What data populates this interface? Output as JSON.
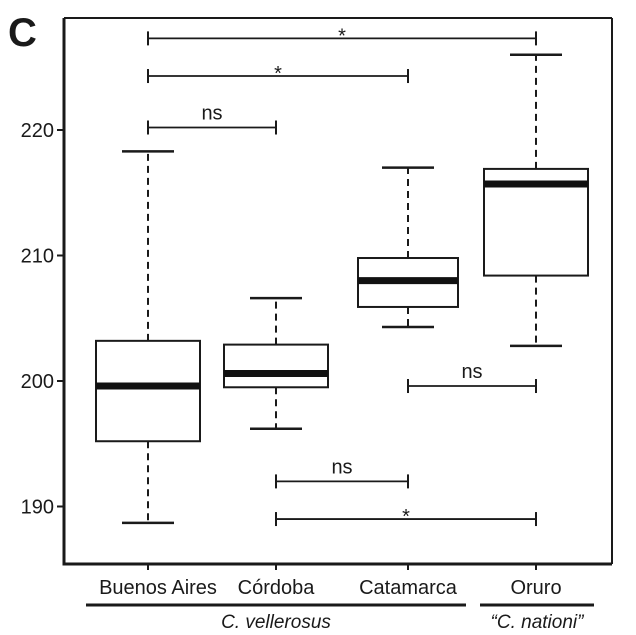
{
  "panel_label": "C",
  "chart_data": {
    "type": "box",
    "ylim": [
      186,
      235
    ],
    "y_ticks": [
      190,
      200,
      210,
      220
    ],
    "categories": [
      "Buenos Aires",
      "Córdoba",
      "Catamarca",
      "Oruro"
    ],
    "boxes": [
      {
        "category": "Buenos Aires",
        "whisker_low": 188.7,
        "q1": 195.2,
        "median": 199.6,
        "q3": 203.2,
        "whisker_high": 218.3
      },
      {
        "category": "Córdoba",
        "whisker_low": 196.2,
        "q1": 199.5,
        "median": 200.6,
        "q3": 202.9,
        "whisker_high": 206.6
      },
      {
        "category": "Catamarca",
        "whisker_low": 204.3,
        "q1": 205.9,
        "median": 208.0,
        "q3": 209.8,
        "whisker_high": 217.0
      },
      {
        "category": "Oruro",
        "whisker_low": 202.8,
        "q1": 208.4,
        "median": 215.7,
        "q3": 216.9,
        "whisker_high": 226.0
      }
    ],
    "comparisons": [
      {
        "from": "Buenos Aires",
        "to": "Oruro",
        "y": 227.3,
        "label": "*"
      },
      {
        "from": "Buenos Aires",
        "to": "Catamarca",
        "y": 224.3,
        "label": "*"
      },
      {
        "from": "Buenos Aires",
        "to": "Córdoba",
        "y": 220.2,
        "label": "ns"
      },
      {
        "from": "Catamarca",
        "to": "Oruro",
        "y": 199.6,
        "label": "ns"
      },
      {
        "from": "Córdoba",
        "to": "Catamarca",
        "y": 192.0,
        "label": "ns"
      },
      {
        "from": "Córdoba",
        "to": "Oruro",
        "y": 189.0,
        "label": "*"
      }
    ],
    "groups": [
      {
        "label": "C. vellerosus",
        "members": [
          "Buenos Aires",
          "Córdoba",
          "Catamarca"
        ]
      },
      {
        "label": "“C. nationi”",
        "members": [
          "Oruro"
        ]
      }
    ]
  }
}
